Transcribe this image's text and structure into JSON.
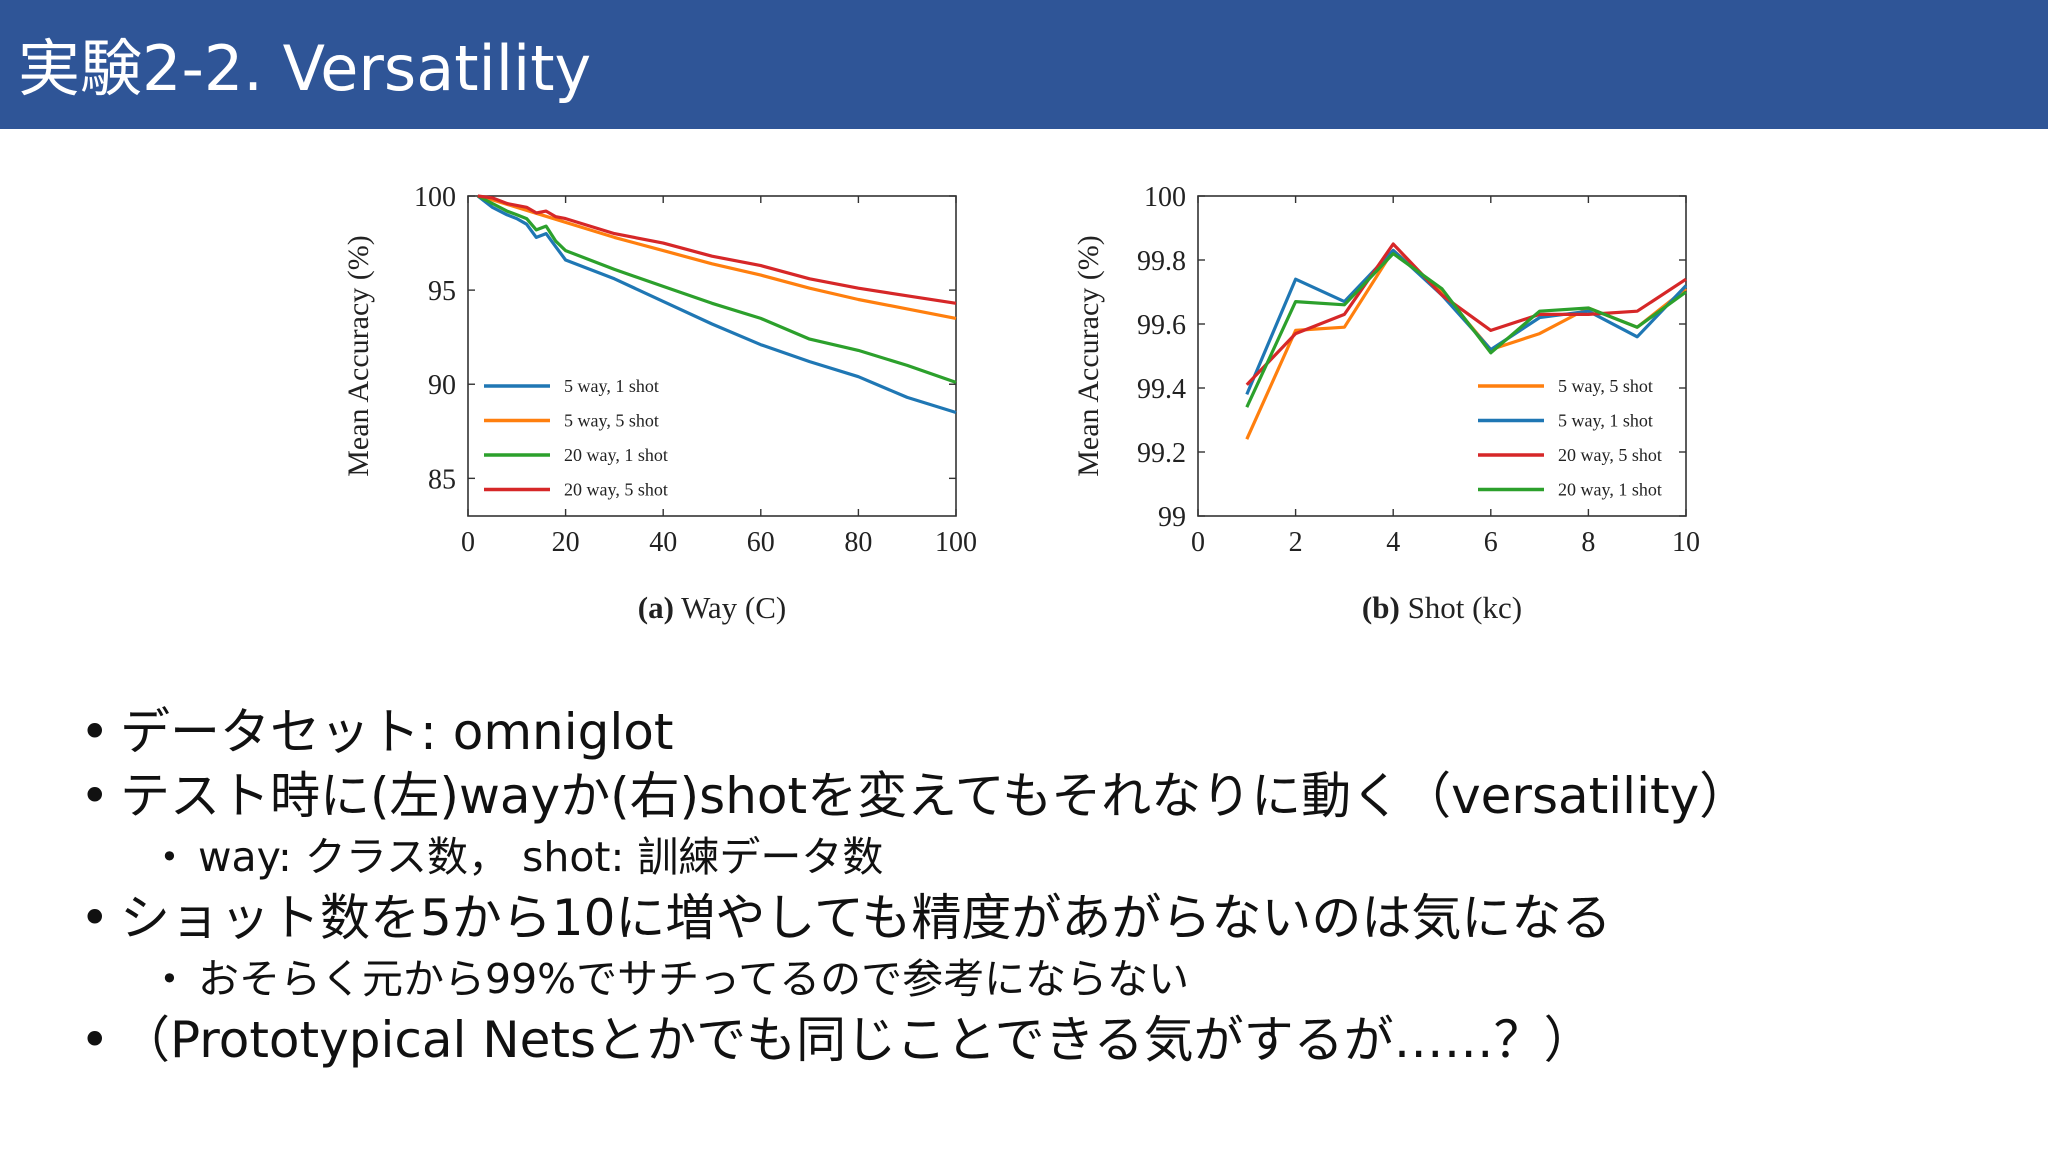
{
  "slide": {
    "title": "実験2-2. Versatility"
  },
  "figure": {
    "panel_a": {
      "caption_bold": "(a)",
      "caption_rest": " Way (C)",
      "ylabel": "Mean Accuracy (%)",
      "legend": [
        "5 way, 1 shot",
        "5 way, 5 shot",
        "20 way, 1 shot",
        "20 way, 5 shot"
      ]
    },
    "panel_b": {
      "caption_bold": "(b)",
      "caption_rest": " Shot (kc)",
      "ylabel": "Mean Accuracy (%)",
      "legend": [
        "5 way, 5 shot",
        "5 way, 1 shot",
        "20 way, 5 shot",
        "20 way, 1 shot"
      ]
    },
    "colors": {
      "blue": "#1f77b4",
      "orange": "#ff7f0e",
      "green": "#2ca02c",
      "red": "#d62728"
    }
  },
  "chart_data": [
    {
      "type": "line",
      "xlim": [
        0,
        100
      ],
      "ylim": [
        83,
        100
      ],
      "xticks": [
        0,
        20,
        40,
        60,
        80,
        100
      ],
      "yticks": [
        85,
        90,
        95,
        100
      ],
      "grid": false,
      "legend_position": "bottom-left",
      "series": [
        {
          "name": "5 way, 1 shot",
          "color": "#1f77b4",
          "x": [
            2,
            5,
            8,
            10,
            12,
            14,
            16,
            18,
            20,
            30,
            40,
            50,
            60,
            70,
            80,
            90,
            100
          ],
          "y": [
            100,
            99.4,
            99.0,
            98.8,
            98.5,
            97.8,
            98.0,
            97.3,
            96.6,
            95.6,
            94.4,
            93.2,
            92.1,
            91.2,
            90.4,
            89.3,
            88.5
          ]
        },
        {
          "name": "5 way, 5 shot",
          "color": "#ff7f0e",
          "x": [
            2,
            5,
            10,
            15,
            20,
            30,
            40,
            50,
            60,
            70,
            80,
            90,
            100
          ],
          "y": [
            100,
            99.8,
            99.4,
            99.0,
            98.6,
            97.8,
            97.1,
            96.4,
            95.8,
            95.1,
            94.5,
            94.0,
            93.5
          ]
        },
        {
          "name": "20 way, 1 shot",
          "color": "#2ca02c",
          "x": [
            2,
            5,
            8,
            10,
            12,
            14,
            16,
            18,
            20,
            30,
            40,
            50,
            60,
            70,
            80,
            90,
            100
          ],
          "y": [
            100,
            99.6,
            99.2,
            99.0,
            98.8,
            98.2,
            98.4,
            97.6,
            97.1,
            96.1,
            95.2,
            94.3,
            93.5,
            92.4,
            91.8,
            91.0,
            90.1
          ]
        },
        {
          "name": "20 way, 5 shot",
          "color": "#d62728",
          "x": [
            2,
            5,
            8,
            10,
            12,
            14,
            16,
            18,
            20,
            30,
            40,
            50,
            60,
            70,
            80,
            90,
            100
          ],
          "y": [
            100,
            99.9,
            99.6,
            99.5,
            99.4,
            99.1,
            99.2,
            98.9,
            98.8,
            98.0,
            97.5,
            96.8,
            96.3,
            95.6,
            95.1,
            94.7,
            94.3
          ]
        }
      ]
    },
    {
      "type": "line",
      "xlim": [
        0,
        10
      ],
      "ylim": [
        99,
        100
      ],
      "xticks": [
        0,
        2,
        4,
        6,
        8,
        10
      ],
      "yticks": [
        99,
        99.2,
        99.4,
        99.6,
        99.8,
        100
      ],
      "grid": false,
      "legend_position": "bottom-right",
      "series": [
        {
          "name": "5 way, 5 shot",
          "color": "#ff7f0e",
          "x": [
            1,
            2,
            3,
            4,
            5,
            6,
            7,
            8,
            9,
            10
          ],
          "y": [
            99.24,
            99.58,
            99.59,
            99.83,
            99.7,
            99.52,
            99.57,
            99.65,
            99.59,
            99.71
          ]
        },
        {
          "name": "5 way, 1 shot",
          "color": "#1f77b4",
          "x": [
            1,
            2,
            3,
            4,
            5,
            6,
            7,
            8,
            9,
            10
          ],
          "y": [
            99.38,
            99.74,
            99.67,
            99.83,
            99.69,
            99.52,
            99.62,
            99.64,
            99.56,
            99.72
          ]
        },
        {
          "name": "20 way, 5 shot",
          "color": "#d62728",
          "x": [
            1,
            2,
            3,
            4,
            5,
            6,
            7,
            8,
            9,
            10
          ],
          "y": [
            99.41,
            99.57,
            99.63,
            99.85,
            99.69,
            99.58,
            99.63,
            99.63,
            99.64,
            99.74
          ]
        },
        {
          "name": "20 way, 1 shot",
          "color": "#2ca02c",
          "x": [
            1,
            2,
            3,
            4,
            5,
            6,
            7,
            8,
            9,
            10
          ],
          "y": [
            99.34,
            99.67,
            99.66,
            99.82,
            99.71,
            99.51,
            99.64,
            99.65,
            99.59,
            99.7
          ]
        }
      ]
    }
  ],
  "bullets": [
    {
      "level": 1,
      "text": "データセット: omniglot"
    },
    {
      "level": 1,
      "text": "テスト時に(左)wayか(右)shotを変えてもそれなりに動く（versatility）"
    },
    {
      "level": 2,
      "text": "way: クラス数，  shot: 訓練データ数"
    },
    {
      "level": 1,
      "text": "ショット数を5から10に増やしても精度があがらないのは気になる"
    },
    {
      "level": 2,
      "text": "おそらく元から99%でサチってるので参考にならない"
    },
    {
      "level": 1,
      "text": "（Prototypical Netsとかでも同じことできる気がするが……？）"
    }
  ]
}
